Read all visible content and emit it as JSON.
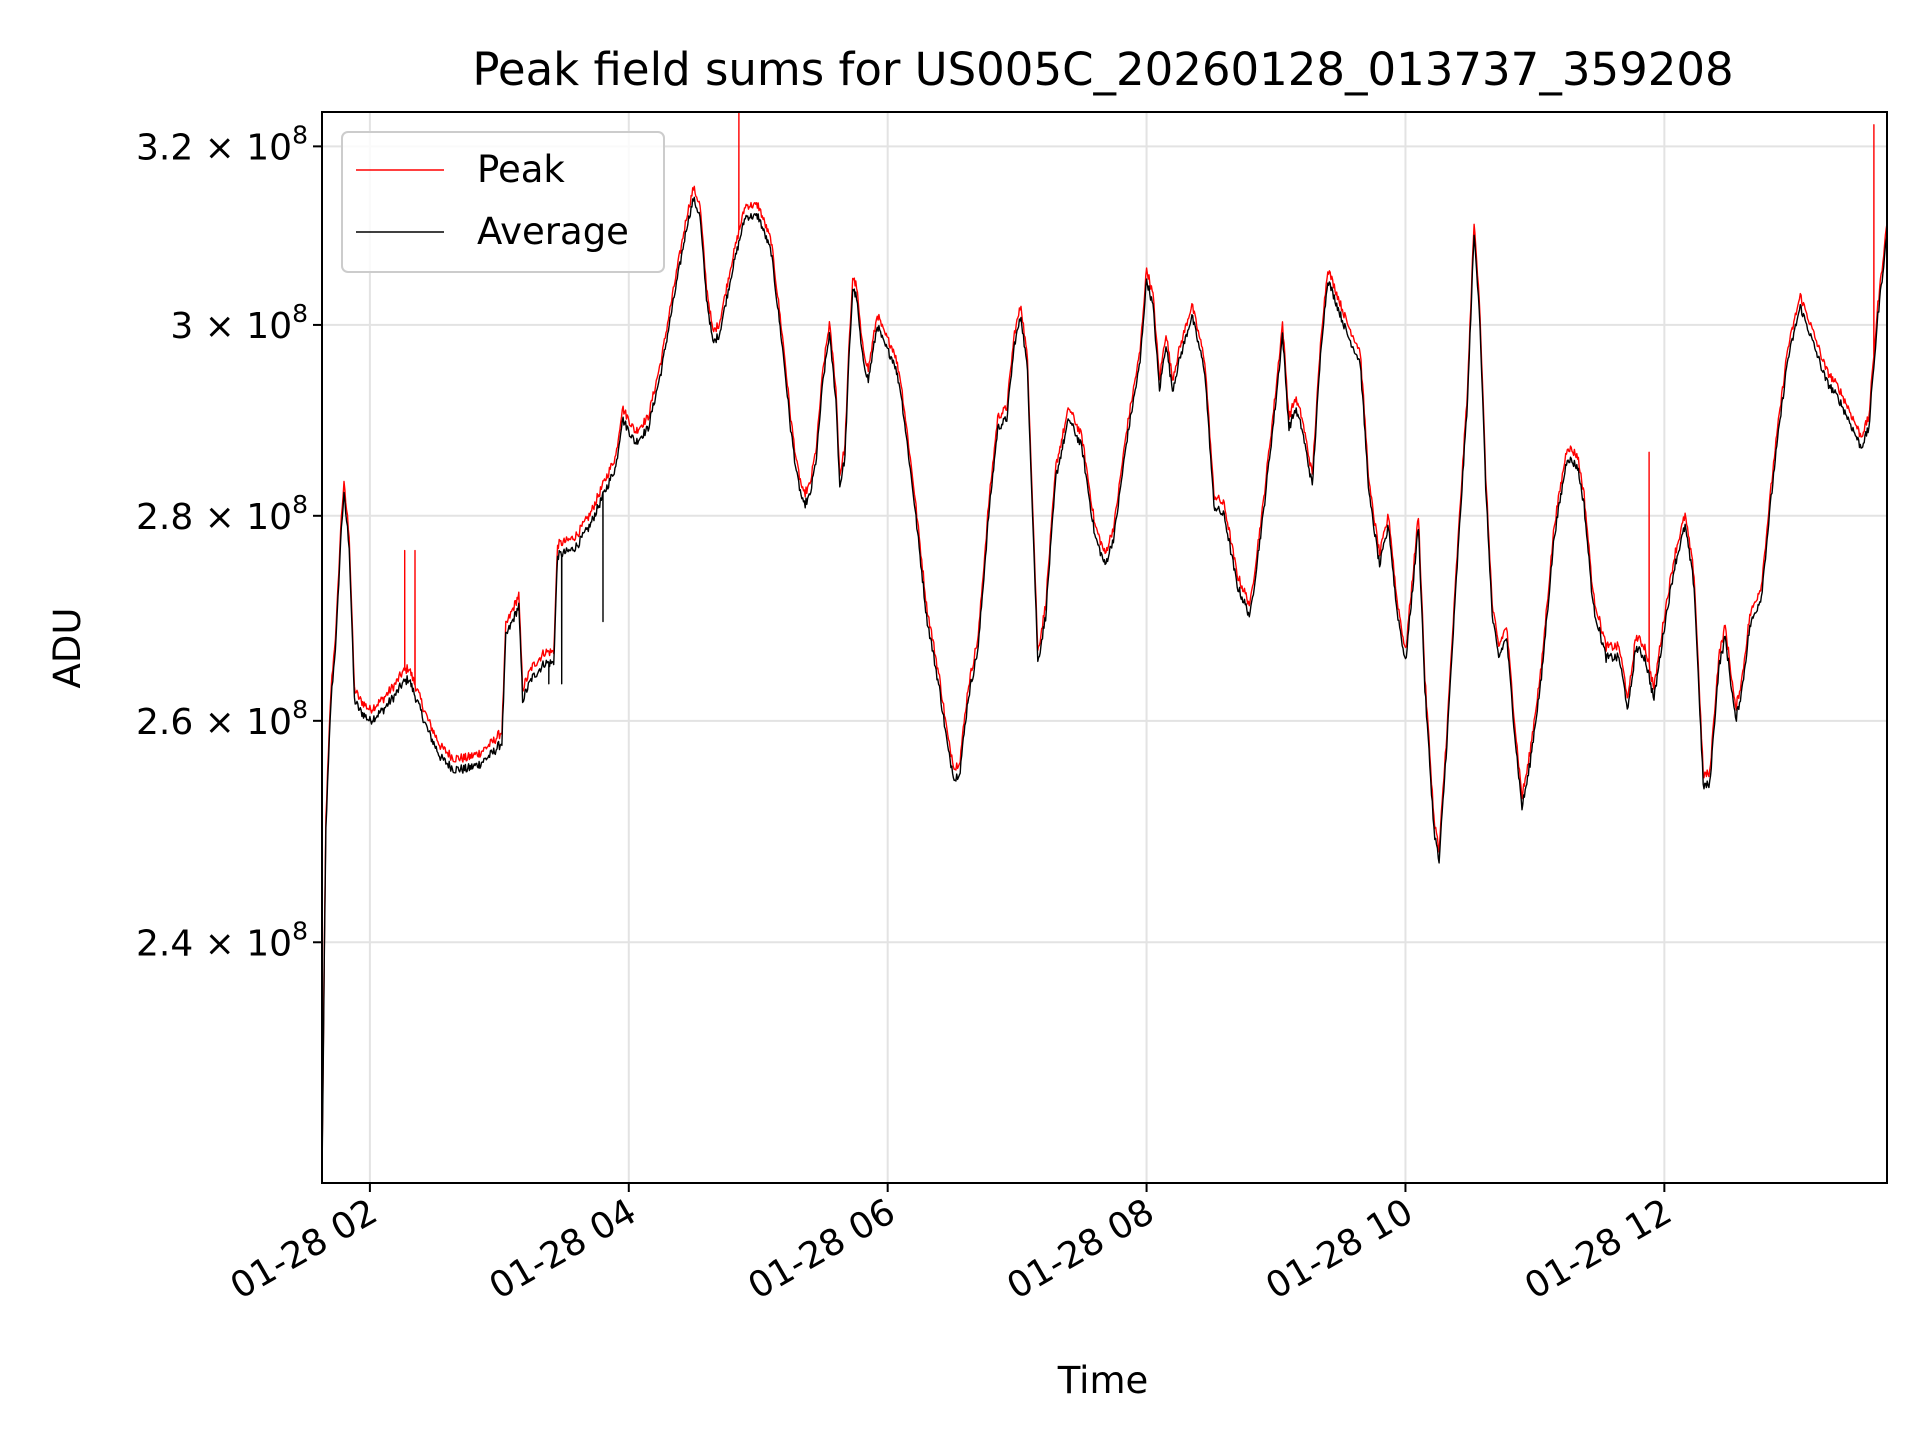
{
  "chart_data": {
    "type": "line",
    "title": "Peak field sums for US005C_20260128_013737_359208",
    "xlabel": "Time",
    "ylabel": "ADU",
    "yscale": "log",
    "ylim": [
      220000000,
      324000000
    ],
    "xlim_hours": [
      1.63,
      13.72
    ],
    "grid": true,
    "legend_position": "top-left",
    "x_ticks": [
      {
        "hour": 2,
        "label": "01-28 02"
      },
      {
        "hour": 4,
        "label": "01-28 04"
      },
      {
        "hour": 6,
        "label": "01-28 06"
      },
      {
        "hour": 8,
        "label": "01-28 08"
      },
      {
        "hour": 10,
        "label": "01-28 10"
      },
      {
        "hour": 12,
        "label": "01-28 12"
      }
    ],
    "y_ticks": [
      {
        "value": 240000000,
        "mant": "2.4",
        "exp": "8"
      },
      {
        "value": 260000000,
        "mant": "2.6",
        "exp": "8"
      },
      {
        "value": 280000000,
        "mant": "2.8",
        "exp": "8"
      },
      {
        "value": 300000000,
        "mant": "3",
        "exp": "8"
      },
      {
        "value": 320000000,
        "mant": "3.2",
        "exp": "8"
      }
    ],
    "series": [
      {
        "name": "Peak",
        "color": "#ff0000",
        "offset_frac": 0.004
      },
      {
        "name": "Average",
        "color": "#000000",
        "offset_frac": 0.0
      }
    ],
    "average_points": [
      [
        1.63,
        220.5
      ],
      [
        1.66,
        250
      ],
      [
        1.7,
        262
      ],
      [
        1.74,
        268
      ],
      [
        1.78,
        279
      ],
      [
        1.8,
        282
      ],
      [
        1.84,
        277
      ],
      [
        1.88,
        262
      ],
      [
        1.92,
        261
      ],
      [
        2.0,
        260
      ],
      [
        2.1,
        261
      ],
      [
        2.2,
        262.5
      ],
      [
        2.25,
        263.5
      ],
      [
        2.3,
        264
      ],
      [
        2.36,
        262
      ],
      [
        2.45,
        259
      ],
      [
        2.55,
        256.5
      ],
      [
        2.65,
        255.5
      ],
      [
        2.75,
        255.5
      ],
      [
        2.85,
        256
      ],
      [
        2.95,
        257
      ],
      [
        3.02,
        258
      ],
      [
        3.05,
        268
      ],
      [
        3.15,
        271
      ],
      [
        3.18,
        262
      ],
      [
        3.25,
        264
      ],
      [
        3.35,
        265.5
      ],
      [
        3.42,
        265.5
      ],
      [
        3.45,
        276
      ],
      [
        3.55,
        276.5
      ],
      [
        3.6,
        277
      ],
      [
        3.7,
        279
      ],
      [
        3.8,
        282
      ],
      [
        3.9,
        285
      ],
      [
        3.95,
        290
      ],
      [
        4.05,
        287.5
      ],
      [
        4.15,
        289
      ],
      [
        4.25,
        295
      ],
      [
        4.35,
        303
      ],
      [
        4.45,
        311
      ],
      [
        4.5,
        314
      ],
      [
        4.55,
        312
      ],
      [
        4.6,
        303
      ],
      [
        4.65,
        298
      ],
      [
        4.7,
        299
      ],
      [
        4.8,
        306
      ],
      [
        4.9,
        312
      ],
      [
        5.0,
        312
      ],
      [
        5.1,
        308
      ],
      [
        5.2,
        296
      ],
      [
        5.25,
        289
      ],
      [
        5.3,
        284
      ],
      [
        5.35,
        281
      ],
      [
        5.4,
        282
      ],
      [
        5.45,
        286
      ],
      [
        5.5,
        294
      ],
      [
        5.55,
        299
      ],
      [
        5.6,
        292
      ],
      [
        5.63,
        283
      ],
      [
        5.67,
        286
      ],
      [
        5.7,
        296
      ],
      [
        5.73,
        304
      ],
      [
        5.76,
        303
      ],
      [
        5.8,
        297
      ],
      [
        5.85,
        294
      ],
      [
        5.92,
        300
      ],
      [
        5.97,
        298
      ],
      [
        6.05,
        296
      ],
      [
        6.1,
        293
      ],
      [
        6.2,
        282
      ],
      [
        6.3,
        270
      ],
      [
        6.4,
        263
      ],
      [
        6.47,
        257
      ],
      [
        6.52,
        254.5
      ],
      [
        6.56,
        255.5
      ],
      [
        6.62,
        262
      ],
      [
        6.7,
        267
      ],
      [
        6.78,
        280
      ],
      [
        6.85,
        289
      ],
      [
        6.92,
        290
      ],
      [
        6.98,
        298
      ],
      [
        7.03,
        301
      ],
      [
        7.08,
        295
      ],
      [
        7.12,
        280
      ],
      [
        7.16,
        265.5
      ],
      [
        7.22,
        270
      ],
      [
        7.3,
        284
      ],
      [
        7.4,
        290
      ],
      [
        7.5,
        287
      ],
      [
        7.6,
        278
      ],
      [
        7.68,
        275
      ],
      [
        7.75,
        278
      ],
      [
        7.85,
        288
      ],
      [
        7.95,
        296
      ],
      [
        8.0,
        305
      ],
      [
        8.05,
        302
      ],
      [
        8.1,
        293
      ],
      [
        8.15,
        298
      ],
      [
        8.2,
        293
      ],
      [
        8.25,
        296
      ],
      [
        8.35,
        301
      ],
      [
        8.45,
        295
      ],
      [
        8.52,
        281
      ],
      [
        8.6,
        280
      ],
      [
        8.7,
        273
      ],
      [
        8.8,
        270
      ],
      [
        8.9,
        280
      ],
      [
        9.0,
        292
      ],
      [
        9.05,
        299
      ],
      [
        9.1,
        289
      ],
      [
        9.15,
        291
      ],
      [
        9.2,
        289
      ],
      [
        9.28,
        283
      ],
      [
        9.35,
        298
      ],
      [
        9.4,
        305
      ],
      [
        9.45,
        303
      ],
      [
        9.55,
        299
      ],
      [
        9.65,
        296
      ],
      [
        9.72,
        282
      ],
      [
        9.8,
        275
      ],
      [
        9.87,
        279
      ],
      [
        9.93,
        271
      ],
      [
        10.0,
        265.5
      ],
      [
        10.05,
        272
      ],
      [
        10.1,
        279
      ],
      [
        10.15,
        263
      ],
      [
        10.22,
        250
      ],
      [
        10.26,
        247
      ],
      [
        10.32,
        258
      ],
      [
        10.4,
        275
      ],
      [
        10.48,
        292
      ],
      [
        10.53,
        310
      ],
      [
        10.57,
        302
      ],
      [
        10.62,
        283
      ],
      [
        10.67,
        270
      ],
      [
        10.72,
        266
      ],
      [
        10.78,
        268
      ],
      [
        10.85,
        258
      ],
      [
        10.9,
        252
      ],
      [
        10.95,
        255
      ],
      [
        11.05,
        264
      ],
      [
        11.15,
        278
      ],
      [
        11.25,
        286
      ],
      [
        11.33,
        285
      ],
      [
        11.38,
        281
      ],
      [
        11.45,
        271
      ],
      [
        11.55,
        266
      ],
      [
        11.65,
        266
      ],
      [
        11.72,
        261
      ],
      [
        11.78,
        267
      ],
      [
        11.85,
        266
      ],
      [
        11.92,
        262
      ],
      [
        12.0,
        269
      ],
      [
        12.08,
        275
      ],
      [
        12.16,
        279
      ],
      [
        12.23,
        273
      ],
      [
        12.3,
        254
      ],
      [
        12.35,
        254
      ],
      [
        12.42,
        265
      ],
      [
        12.47,
        268
      ],
      [
        12.55,
        260
      ],
      [
        12.6,
        263
      ],
      [
        12.66,
        269
      ],
      [
        12.75,
        272
      ],
      [
        12.85,
        285
      ],
      [
        12.95,
        296
      ],
      [
        13.05,
        302
      ],
      [
        13.15,
        298
      ],
      [
        13.25,
        294
      ],
      [
        13.35,
        292
      ],
      [
        13.42,
        290
      ],
      [
        13.52,
        287
      ],
      [
        13.58,
        289
      ],
      [
        13.65,
        301
      ],
      [
        13.72,
        310
      ]
    ],
    "peak_spikes": [
      [
        4.85,
        324
      ],
      [
        13.62,
        322.5
      ],
      [
        11.88,
        286.5
      ],
      [
        2.27,
        276.5
      ],
      [
        2.35,
        276.5
      ]
    ],
    "average_dips": [
      [
        3.8,
        269.5
      ],
      [
        3.48,
        263.5
      ],
      [
        3.38,
        263.5
      ]
    ]
  }
}
